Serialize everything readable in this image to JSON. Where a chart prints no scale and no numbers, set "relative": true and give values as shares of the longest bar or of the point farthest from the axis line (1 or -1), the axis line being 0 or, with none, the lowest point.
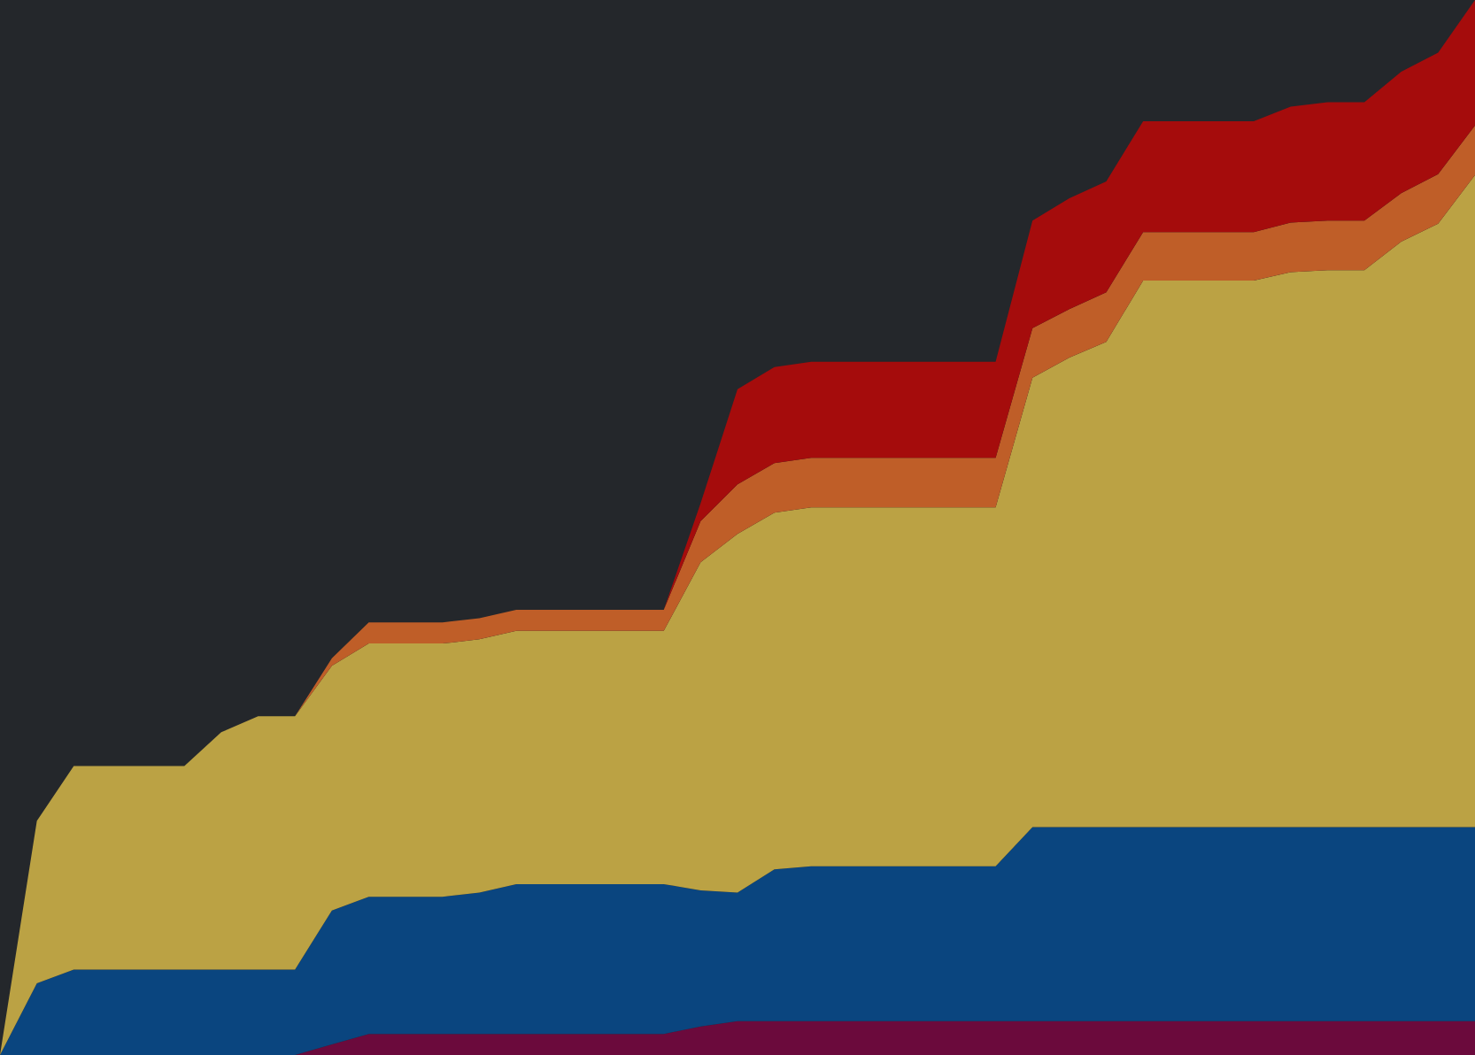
{
  "chart_data": {
    "type": "area",
    "stacked": true,
    "relative": true,
    "legend": false,
    "categories": [
      null,
      null,
      null,
      null,
      null,
      null,
      null,
      null,
      null,
      null,
      null,
      null,
      null,
      null,
      null,
      null,
      null,
      null,
      null,
      null,
      null,
      null,
      null,
      null,
      null,
      null,
      null,
      null,
      null,
      null,
      null,
      null,
      null,
      null,
      null,
      null,
      null,
      null,
      null,
      null,
      null
    ],
    "series": [
      {
        "color": "#6b0a3c",
        "values": [
          0,
          0,
          0,
          0,
          0,
          0,
          0,
          0,
          0,
          0.01,
          0.02,
          0.02,
          0.02,
          0.02,
          0.02,
          0.02,
          0.02,
          0.02,
          0.02,
          0.027,
          0.032,
          0.032,
          0.032,
          0.032,
          0.032,
          0.032,
          0.032,
          0.032,
          0.032,
          0.032,
          0.032,
          0.032,
          0.032,
          0.032,
          0.032,
          0.032,
          0.032,
          0.032,
          0.032,
          0.032,
          0.032
        ]
      },
      {
        "color": "#0a457f",
        "values": [
          0,
          0.068,
          0.081,
          0.081,
          0.081,
          0.081,
          0.081,
          0.081,
          0.081,
          0.127,
          0.13,
          0.13,
          0.13,
          0.134,
          0.142,
          0.142,
          0.142,
          0.142,
          0.142,
          0.129,
          0.122,
          0.144,
          0.147,
          0.147,
          0.147,
          0.147,
          0.147,
          0.147,
          0.184,
          0.184,
          0.184,
          0.184,
          0.184,
          0.184,
          0.184,
          0.184,
          0.184,
          0.184,
          0.184,
          0.184,
          0.184
        ]
      },
      {
        "color": "#bba244",
        "values": [
          0,
          0.154,
          0.193,
          0.193,
          0.193,
          0.193,
          0.225,
          0.24,
          0.24,
          0.232,
          0.24,
          0.24,
          0.24,
          0.24,
          0.24,
          0.24,
          0.24,
          0.24,
          0.24,
          0.311,
          0.34,
          0.338,
          0.34,
          0.34,
          0.34,
          0.34,
          0.34,
          0.34,
          0.426,
          0.445,
          0.46,
          0.518,
          0.518,
          0.518,
          0.518,
          0.526,
          0.528,
          0.528,
          0.555,
          0.572,
          0.618
        ]
      },
      {
        "color": "#bf5e28",
        "values": [
          0,
          0,
          0,
          0,
          0,
          0,
          0,
          0,
          0,
          0.007,
          0.02,
          0.02,
          0.02,
          0.02,
          0.02,
          0.02,
          0.02,
          0.02,
          0.02,
          0.039,
          0.047,
          0.047,
          0.047,
          0.047,
          0.047,
          0.047,
          0.047,
          0.047,
          0.047,
          0.046,
          0.047,
          0.046,
          0.046,
          0.046,
          0.046,
          0.047,
          0.047,
          0.047,
          0.046,
          0.047,
          0.047
        ]
      },
      {
        "color": "#a50c0c",
        "values": [
          0,
          0,
          0,
          0,
          0,
          0,
          0,
          0,
          0,
          0,
          0,
          0,
          0,
          0,
          0,
          0,
          0,
          0,
          0,
          0.017,
          0.09,
          0.091,
          0.091,
          0.091,
          0.091,
          0.091,
          0.091,
          0.091,
          0.102,
          0.105,
          0.105,
          0.105,
          0.105,
          0.105,
          0.105,
          0.11,
          0.112,
          0.112,
          0.115,
          0.115,
          0.119
        ]
      }
    ]
  }
}
